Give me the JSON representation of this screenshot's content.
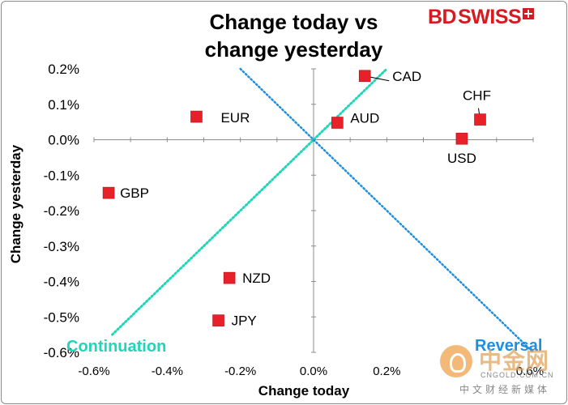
{
  "brand": {
    "part1": "BD",
    "part2": "SWISS"
  },
  "chart_data": {
    "type": "scatter",
    "title": [
      "Change today vs",
      "change yesterday"
    ],
    "xlabel": "Change today",
    "ylabel": "Change yesterday",
    "xlim": [
      -0.6,
      0.6
    ],
    "ylim": [
      -0.6,
      0.2
    ],
    "x_ticks": [
      -0.6,
      -0.4,
      -0.2,
      0.0,
      0.2,
      0.6
    ],
    "x_tick_labels": [
      "-0.6%",
      "-0.4%",
      "-0.2%",
      "0.0%",
      "0.2%",
      "0.6%"
    ],
    "y_ticks": [
      0.2,
      0.1,
      0.0,
      -0.1,
      -0.2,
      -0.3,
      -0.4,
      -0.5,
      -0.6
    ],
    "y_tick_labels": [
      "0.2%",
      "0.1%",
      "0.0%",
      "-0.1%",
      "-0.2%",
      "-0.3%",
      "-0.4%",
      "-0.5%",
      "-0.6%"
    ],
    "grid": false,
    "marker_color": "#e8202a",
    "points": [
      {
        "label": "CAD",
        "x": 0.14,
        "y": 0.18
      },
      {
        "label": "EUR",
        "x": -0.32,
        "y": 0.065
      },
      {
        "label": "AUD",
        "x": 0.065,
        "y": 0.048
      },
      {
        "label": "CHF",
        "x": 0.455,
        "y": 0.057
      },
      {
        "label": "USD",
        "x": 0.405,
        "y": 0.003
      },
      {
        "label": "GBP",
        "x": -0.56,
        "y": -0.15
      },
      {
        "label": "NZD",
        "x": -0.23,
        "y": -0.39
      },
      {
        "label": "JPY",
        "x": -0.26,
        "y": -0.51
      }
    ],
    "reference_lines": [
      {
        "name": "Continuation",
        "color": "#1fd6b8"
      },
      {
        "name": "Reversal",
        "color": "#1e8fe0"
      }
    ]
  },
  "annotations": {
    "continuation": "Continuation",
    "reversal": "Reversal"
  },
  "watermark": {
    "name": "中金网",
    "url": "CNGOLD.COM.CN",
    "tagline": "中文财经新媒体"
  }
}
